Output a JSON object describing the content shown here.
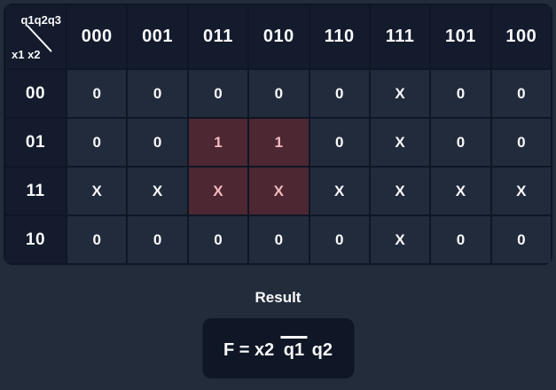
{
  "kmap": {
    "corner": {
      "top_label": "q1q2q3",
      "bottom_label": "x1 x2"
    },
    "col_headers": [
      "000",
      "001",
      "011",
      "010",
      "110",
      "111",
      "101",
      "100"
    ],
    "row_headers": [
      "00",
      "01",
      "11",
      "10"
    ],
    "rows": [
      [
        "0",
        "0",
        "0",
        "0",
        "0",
        "X",
        "0",
        "0"
      ],
      [
        "0",
        "0",
        "1",
        "1",
        "0",
        "X",
        "0",
        "0"
      ],
      [
        "X",
        "X",
        "X",
        "X",
        "X",
        "X",
        "X",
        "X"
      ],
      [
        "0",
        "0",
        "0",
        "0",
        "0",
        "X",
        "0",
        "0"
      ]
    ],
    "highlighted_cells": [
      [
        1,
        2
      ],
      [
        1,
        3
      ],
      [
        2,
        2
      ],
      [
        2,
        3
      ]
    ]
  },
  "result": {
    "label": "Result",
    "formula": [
      {
        "text": "F = x2 ",
        "overline": false
      },
      {
        "text": "q1",
        "overline": true
      },
      {
        "text": " q2",
        "overline": false
      }
    ]
  },
  "colors": {
    "page_bg": "#232C3A",
    "header_bg": "#131B2C",
    "cell_bg": "#222B3B",
    "grid_border": "#0F1626",
    "highlight_bg": "#4D2731",
    "highlight_text": "#F2BAC1",
    "text": "#F8F9FB",
    "formula_box_bg": "#0F1726"
  }
}
